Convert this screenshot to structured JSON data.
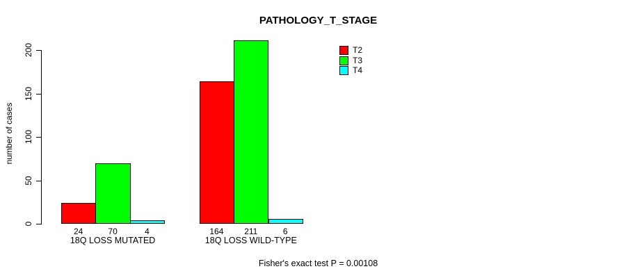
{
  "page": {
    "background": "#ffffff"
  },
  "chart_data": {
    "type": "bar",
    "title": "PATHOLOGY_T_STAGE",
    "ylabel": "number of cases",
    "xlabel": "",
    "categories": [
      "18Q LOSS MUTATED",
      "18Q LOSS WILD-TYPE"
    ],
    "series": [
      {
        "name": "T2",
        "color": "#ff0000",
        "values": [
          24,
          164
        ]
      },
      {
        "name": "T3",
        "color": "#00ff00",
        "values": [
          70,
          211
        ]
      },
      {
        "name": "T4",
        "color": "#00ffff",
        "values": [
          4,
          6
        ]
      }
    ],
    "bar_value_labels": [
      [
        "24",
        "70",
        "4"
      ],
      [
        "164",
        "211",
        "6"
      ]
    ],
    "y_ticks": [
      0,
      50,
      100,
      150,
      200
    ],
    "ylim": [
      0,
      200
    ],
    "grid": false,
    "legend_position": "top-right",
    "annotation": "Fisher's exact test P = 0.00108"
  }
}
